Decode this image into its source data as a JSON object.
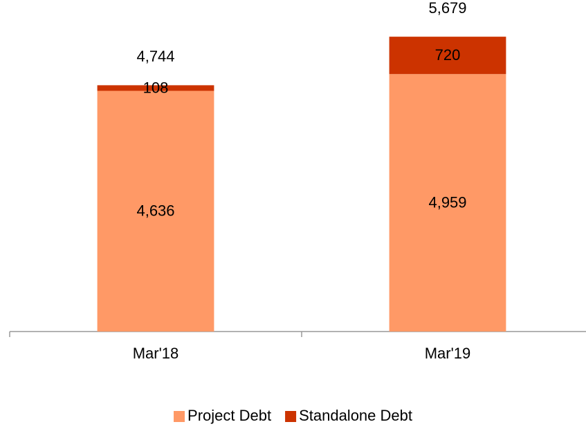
{
  "chart_data": {
    "type": "stacked_bar",
    "categories": [
      "Mar'18",
      "Mar'19"
    ],
    "series": [
      {
        "name": "Project Debt",
        "color": "#ff9966",
        "values": [
          4636,
          4959
        ],
        "value_labels": [
          "4,636",
          "4,959"
        ]
      },
      {
        "name": "Standalone Debt",
        "color": "#cc3300",
        "values": [
          108,
          720
        ],
        "value_labels": [
          "108",
          "720"
        ]
      }
    ],
    "totals": [
      4744,
      5679
    ],
    "total_labels": [
      "4,744",
      "5,679"
    ],
    "ylim": [
      0,
      6000
    ],
    "legend": "bottom"
  }
}
